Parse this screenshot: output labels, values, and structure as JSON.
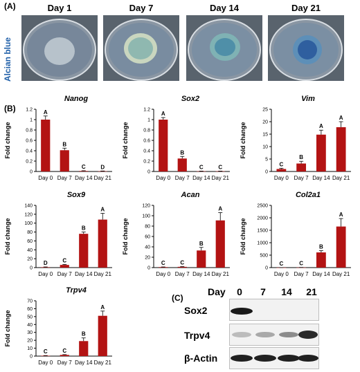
{
  "panelA": {
    "letter": "(A)",
    "stain_label": "Alcian blue",
    "days": [
      "Day 1",
      "Day 7",
      "Day 14",
      "Day 21"
    ]
  },
  "panelB": {
    "letter": "(B)"
  },
  "panelC": {
    "letter": "(C)",
    "day_header": "Day",
    "days": [
      "0",
      "7",
      "14",
      "21"
    ],
    "rows": [
      "Sox2",
      "Trpv4",
      "β-Actin"
    ]
  },
  "chart_data": [
    {
      "type": "bar",
      "title": "Nanog",
      "ylabel": "Fold change",
      "xlabel": "",
      "categories": [
        "Day 0",
        "Day 7",
        "Day 14",
        "Day 21"
      ],
      "values": [
        1.0,
        0.41,
        0.01,
        0.005
      ],
      "errors": [
        0.07,
        0.04,
        0.005,
        0.005
      ],
      "letters": [
        "A",
        "B",
        "C",
        "D"
      ],
      "ylim": [
        0,
        1.2
      ],
      "yticks": [
        0,
        0.2,
        0.4,
        0.6,
        0.8,
        1,
        1.2
      ],
      "yticklabels": [
        "0",
        "0.2",
        "0.4",
        "0.6",
        "0.8",
        "1",
        "1.2"
      ]
    },
    {
      "type": "bar",
      "title": "Sox2",
      "ylabel": "Fold change",
      "xlabel": "",
      "categories": [
        "Day 0",
        "Day 7",
        "Day 14",
        "Day 21"
      ],
      "values": [
        1.0,
        0.25,
        0.005,
        0.005
      ],
      "errors": [
        0.04,
        0.04,
        0.003,
        0.003
      ],
      "letters": [
        "A",
        "B",
        "C",
        "C"
      ],
      "ylim": [
        0,
        1.2
      ],
      "yticks": [
        0,
        0.2,
        0.4,
        0.6,
        0.8,
        1,
        1.2
      ],
      "yticklabels": [
        "0",
        "0.2",
        "0.4",
        "0.6",
        "0.8",
        "1",
        "1.2"
      ]
    },
    {
      "type": "bar",
      "title": "Vim",
      "ylabel": "Fold change",
      "xlabel": "",
      "categories": [
        "Day 0",
        "Day 7",
        "Day 14",
        "Day 21"
      ],
      "values": [
        1.0,
        3.2,
        14.8,
        17.8
      ],
      "errors": [
        0.3,
        0.9,
        1.8,
        2.2
      ],
      "letters": [
        "C",
        "B",
        "A",
        "A"
      ],
      "ylim": [
        0,
        25
      ],
      "yticks": [
        0,
        5,
        10,
        15,
        20,
        25
      ],
      "yticklabels": [
        "0",
        "5",
        "10",
        "15",
        "20",
        "25"
      ]
    },
    {
      "type": "bar",
      "title": "Sox9",
      "ylabel": "Fold change",
      "xlabel": "",
      "categories": [
        "Day 0",
        "Day 7",
        "Day 14",
        "Day 21"
      ],
      "values": [
        1.0,
        6.0,
        76,
        108
      ],
      "errors": [
        0.5,
        1.0,
        4,
        14
      ],
      "letters": [
        "D",
        "C",
        "B",
        "A"
      ],
      "ylim": [
        0,
        140
      ],
      "yticks": [
        0,
        20,
        40,
        60,
        80,
        100,
        120,
        140
      ],
      "yticklabels": [
        "0",
        "20",
        "40",
        "60",
        "80",
        "100",
        "120",
        "140"
      ]
    },
    {
      "type": "bar",
      "title": "Acan",
      "ylabel": "Fold change",
      "xlabel": "",
      "categories": [
        "Day 0",
        "Day 7",
        "Day 14",
        "Day 21"
      ],
      "values": [
        1.0,
        1.5,
        33,
        91
      ],
      "errors": [
        0.3,
        0.4,
        6,
        15
      ],
      "letters": [
        "C",
        "C",
        "B",
        "A"
      ],
      "ylim": [
        0,
        120
      ],
      "yticks": [
        0,
        20,
        40,
        60,
        80,
        100,
        120
      ],
      "yticklabels": [
        "0",
        "20",
        "40",
        "60",
        "80",
        "100",
        "120"
      ]
    },
    {
      "type": "bar",
      "title": "Col2a1",
      "ylabel": "Fold change",
      "xlabel": "",
      "categories": [
        "Day 0",
        "Day 7",
        "Day 14",
        "Day 21"
      ],
      "values": [
        1.0,
        5,
        610,
        1650
      ],
      "errors": [
        0.5,
        3,
        70,
        320
      ],
      "letters": [
        "C",
        "C",
        "B",
        "A"
      ],
      "ylim": [
        0,
        2500
      ],
      "yticks": [
        0,
        500,
        1000,
        1500,
        2000,
        2500
      ],
      "yticklabels": [
        "0",
        "500",
        "1000",
        "1500",
        "2000",
        "2500"
      ]
    },
    {
      "type": "bar",
      "title": "Trpv4",
      "ylabel": "Fold change",
      "xlabel": "",
      "categories": [
        "Day 0",
        "Day 7",
        "Day 14",
        "Day 21"
      ],
      "values": [
        0.5,
        1.5,
        19,
        51
      ],
      "errors": [
        0.2,
        0.4,
        4,
        6
      ],
      "letters": [
        "C",
        "C",
        "B",
        "A"
      ],
      "ylim": [
        0,
        70
      ],
      "yticks": [
        0,
        10,
        20,
        30,
        40,
        50,
        60,
        70
      ],
      "yticklabels": [
        "0",
        "10",
        "20",
        "30",
        "40",
        "50",
        "60",
        "70"
      ]
    }
  ],
  "colors": {
    "bar": "#b31313",
    "alcian": "#1f5fa8"
  }
}
